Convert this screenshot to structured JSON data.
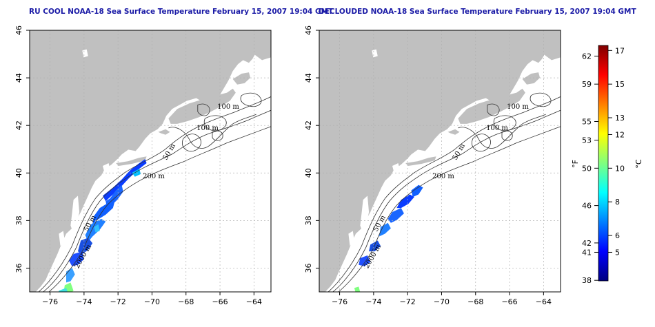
{
  "titles": {
    "left": "RU COOL NOAA-18 Sea Surface Temperature February 15, 2007 19:04 GMT",
    "right": "DECLOUDED NOAA-18 Sea Surface Temperature February 15, 2007 19:04 GMT"
  },
  "axes": {
    "x_ticks": [
      -76,
      -74,
      -72,
      -70,
      -68,
      -66,
      -64
    ],
    "y_ticks": [
      36,
      38,
      40,
      42,
      44,
      46
    ],
    "x_range": [
      -77.2,
      -63.0
    ],
    "y_range": [
      35.0,
      46.0
    ]
  },
  "contour_labels": [
    "100 m",
    "100 m",
    "50 m",
    "200 m",
    "50 m",
    "2000 m"
  ],
  "colorbar": {
    "f_label": "°F",
    "c_label": "°C",
    "f_ticks": [
      "38",
      "41",
      "42",
      "46",
      "50",
      "53",
      "55",
      "59",
      "62"
    ],
    "c_ticks": [
      "5",
      "6",
      "8",
      "10",
      "12",
      "13",
      "15",
      "17"
    ],
    "range_c": [
      3.3,
      17.3
    ],
    "colors": [
      "#00007f",
      "#0000ff",
      "#007fff",
      "#00ffff",
      "#7fff7f",
      "#ffff00",
      "#ff7f00",
      "#ff0000",
      "#7f0000"
    ]
  },
  "colors": {
    "land": "#c0c0c0",
    "water": "#ffffff",
    "grid": "#b0b0b0",
    "title": "#1a1aa6"
  }
}
